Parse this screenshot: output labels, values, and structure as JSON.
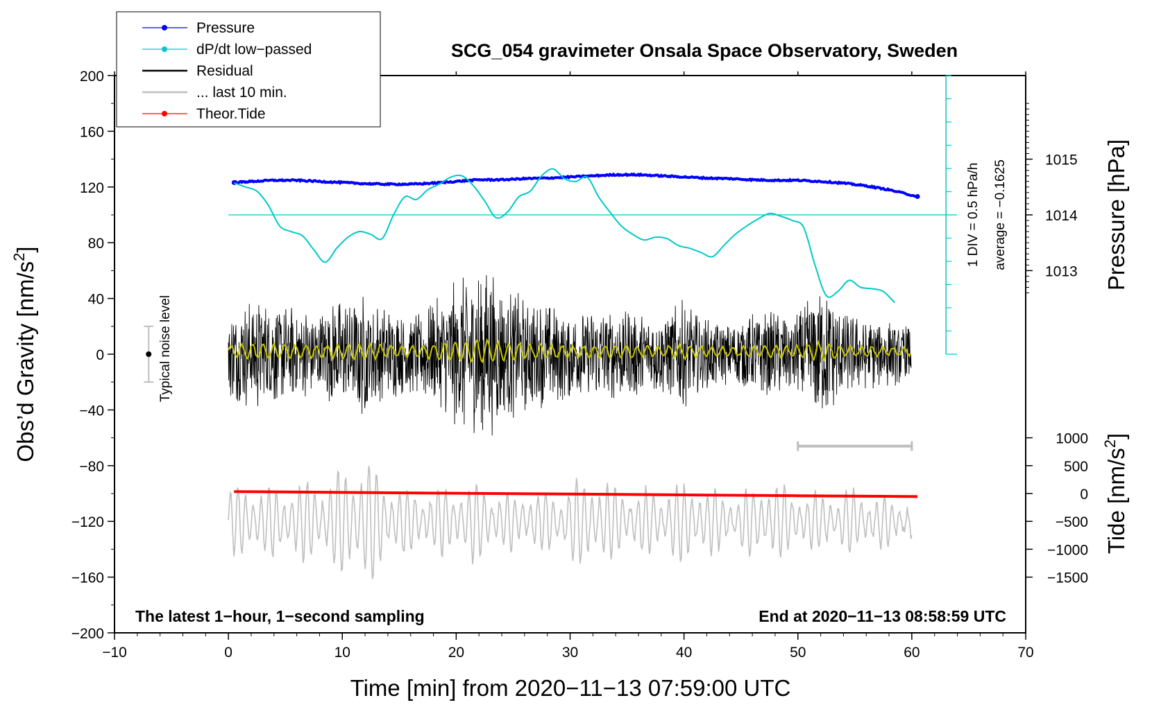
{
  "chart_data": {
    "type": "line",
    "title": "SCG_054 gravimeter Onsala Space Observatory, Sweden",
    "xlabel": "Time [min] from 2020−11−13 07:59:00 UTC",
    "ylabel_left_main": "Obs’d Gravity [nm/s",
    "ylabel_left_sup": "2",
    "ylabel_left_end": "]",
    "ylabel_right_pressure": "Pressure [hPa]",
    "ylabel_right_tide_main": "Tide [nm/s",
    "ylabel_right_tide_sup": "2",
    "ylabel_right_tide_end": "]",
    "xlim": [
      -10,
      70
    ],
    "ylim": [
      -200,
      200
    ],
    "x_ticks": [
      {
        "v": -10,
        "label": "−10"
      },
      {
        "v": 0,
        "label": "0"
      },
      {
        "v": 10,
        "label": "10"
      },
      {
        "v": 20,
        "label": "20"
      },
      {
        "v": 30,
        "label": "30"
      },
      {
        "v": 40,
        "label": "40"
      },
      {
        "v": 50,
        "label": "50"
      },
      {
        "v": 60,
        "label": "60"
      },
      {
        "v": 70,
        "label": "70"
      }
    ],
    "y_ticks": [
      {
        "v": 200,
        "label": "200"
      },
      {
        "v": 160,
        "label": "160"
      },
      {
        "v": 120,
        "label": "120"
      },
      {
        "v": 80,
        "label": "80"
      },
      {
        "v": 40,
        "label": "40"
      },
      {
        "v": 0,
        "label": "0"
      },
      {
        "v": -40,
        "label": "−40"
      },
      {
        "v": -80,
        "label": "−80"
      },
      {
        "v": -120,
        "label": "−120"
      },
      {
        "v": -160,
        "label": "−160"
      },
      {
        "v": -200,
        "label": "−200"
      }
    ],
    "pressure_axis": {
      "ticks": [
        {
          "v": 1015,
          "label": "1015"
        },
        {
          "v": 1014,
          "label": "1014"
        },
        {
          "v": 1013,
          "label": "1013"
        }
      ],
      "gravity_at_1014": 100,
      "nm_s2_per_hPa": 40
    },
    "tide_axis": {
      "ticks": [
        {
          "v": 1000,
          "label": "1000"
        },
        {
          "v": 500,
          "label": "500"
        },
        {
          "v": 0,
          "label": "0"
        },
        {
          "v": -500,
          "label": "−500"
        },
        {
          "v": -1000,
          "label": "−1000"
        },
        {
          "v": -1500,
          "label": "−1500"
        }
      ],
      "gravity_at_0": -100,
      "tide_per_gravity_unit": 25
    },
    "dpdt_axis": {
      "label1": "1 DIV = 0.5 hPa/h",
      "label2": "average = −0.1625",
      "x": 63,
      "y_range": [
        0,
        200
      ],
      "div_count": 12,
      "baseline_y": 100
    },
    "legend": {
      "position": "top-left",
      "entries": [
        {
          "label": "Pressure",
          "color": "#0000ff",
          "marker": true
        },
        {
          "label": "dP/dt low−passed",
          "color": "#00c8c8",
          "marker": true
        },
        {
          "label": "Residual",
          "color": "#000000",
          "marker": false
        },
        {
          "label": "... last 10 min.",
          "color": "#bebebe",
          "marker": false
        },
        {
          "label": "Theor.Tide",
          "color": "#ff0000",
          "marker": true
        }
      ]
    },
    "annotations": {
      "bottom_left": "The latest 1−hour, 1−second sampling",
      "bottom_right": "End at 2020−11−13 08:58:59 UTC",
      "noise_label": "Typical noise level",
      "noise_bar": {
        "x": -7,
        "center": 0,
        "half": 20
      },
      "last10_bar": {
        "x0": 50,
        "x1": 60,
        "y": -66
      }
    },
    "series": [
      {
        "name": "Pressure",
        "color": "#0000ff",
        "units": "hPa",
        "x": [
          0.5,
          2,
          4,
          6,
          8,
          10,
          12,
          14,
          16,
          18,
          20,
          22,
          24,
          26,
          28,
          30,
          32,
          34,
          36,
          38,
          40,
          42,
          44,
          46,
          48,
          50,
          52,
          54,
          56,
          58,
          60.5
        ],
        "y": [
          1014.58,
          1014.6,
          1014.62,
          1014.62,
          1014.6,
          1014.58,
          1014.56,
          1014.55,
          1014.55,
          1014.57,
          1014.6,
          1014.63,
          1014.63,
          1014.65,
          1014.66,
          1014.68,
          1014.7,
          1014.72,
          1014.72,
          1014.7,
          1014.68,
          1014.66,
          1014.65,
          1014.63,
          1014.62,
          1014.62,
          1014.6,
          1014.57,
          1014.52,
          1014.45,
          1014.33
        ]
      },
      {
        "name": "dP/dt low-passed",
        "color": "#00c8c8",
        "units": "nm/s2 plot scale",
        "x": [
          0.5,
          1.5,
          2.5,
          3.5,
          4.5,
          5.5,
          6.5,
          7.5,
          8.5,
          9.5,
          10.5,
          11.5,
          12.5,
          13.5,
          14.5,
          15.5,
          16.5,
          17.5,
          18.5,
          19.5,
          20.5,
          21.5,
          22.5,
          23.5,
          24.5,
          25.5,
          26.5,
          27.5,
          28.5,
          29.5,
          30.5,
          31.5,
          32.5,
          33.5,
          34.5,
          35.5,
          36.5,
          37.5,
          38.5,
          39.5,
          40.5,
          41.5,
          42.5,
          43.5,
          44.5,
          45.5,
          46.5,
          47.5,
          48.5,
          49.5,
          50.5,
          51.5,
          52.5,
          53.5,
          54.5,
          55.5,
          56.5,
          57.5,
          58.5
        ],
        "y": [
          123,
          120,
          117,
          107,
          92,
          88,
          85,
          75,
          66,
          76,
          84,
          88,
          86,
          83,
          100,
          113,
          111,
          118,
          122,
          127,
          128,
          121,
          110,
          98,
          102,
          113,
          117,
          128,
          133,
          126,
          124,
          127,
          113,
          102,
          92,
          86,
          82,
          84,
          83,
          78,
          76,
          73,
          70,
          78,
          86,
          92,
          97,
          101,
          99,
          96,
          91,
          64,
          42,
          45,
          53,
          48,
          47,
          45,
          37
        ]
      },
      {
        "name": "Residual",
        "color": "#000000",
        "units": "nm/s2",
        "x_range": [
          0,
          60
        ],
        "envelope": [
          {
            "x": 0,
            "amp": 30
          },
          {
            "x": 2,
            "amp": 42
          },
          {
            "x": 4,
            "amp": 38
          },
          {
            "x": 6,
            "amp": 36
          },
          {
            "x": 8,
            "amp": 32
          },
          {
            "x": 10,
            "amp": 42
          },
          {
            "x": 12,
            "amp": 46
          },
          {
            "x": 14,
            "amp": 34
          },
          {
            "x": 16,
            "amp": 30
          },
          {
            "x": 18,
            "amp": 38
          },
          {
            "x": 20,
            "amp": 54
          },
          {
            "x": 22,
            "amp": 68
          },
          {
            "x": 24,
            "amp": 52
          },
          {
            "x": 26,
            "amp": 42
          },
          {
            "x": 28,
            "amp": 38
          },
          {
            "x": 30,
            "amp": 32
          },
          {
            "x": 32,
            "amp": 34
          },
          {
            "x": 34,
            "amp": 34
          },
          {
            "x": 36,
            "amp": 32
          },
          {
            "x": 38,
            "amp": 30
          },
          {
            "x": 40,
            "amp": 40
          },
          {
            "x": 42,
            "amp": 26
          },
          {
            "x": 44,
            "amp": 22
          },
          {
            "x": 46,
            "amp": 30
          },
          {
            "x": 48,
            "amp": 32
          },
          {
            "x": 50,
            "amp": 30
          },
          {
            "x": 52,
            "amp": 52
          },
          {
            "x": 54,
            "amp": 30
          },
          {
            "x": 56,
            "amp": 26
          },
          {
            "x": 58,
            "amp": 24
          },
          {
            "x": 60,
            "amp": 20
          }
        ],
        "yellow_overlay_color": "#c8c800"
      },
      {
        "name": "... last 10 min.",
        "color": "#bebebe",
        "units": "nm/s2 plot scale",
        "x_range": [
          0,
          60
        ],
        "center": -120,
        "envelope": [
          {
            "x": 0,
            "amp": 25
          },
          {
            "x": 4,
            "amp": 25
          },
          {
            "x": 8,
            "amp": 32
          },
          {
            "x": 10,
            "amp": 38
          },
          {
            "x": 12,
            "amp": 50
          },
          {
            "x": 14,
            "amp": 30
          },
          {
            "x": 16,
            "amp": 22
          },
          {
            "x": 18,
            "amp": 24
          },
          {
            "x": 20,
            "amp": 28
          },
          {
            "x": 22,
            "amp": 30
          },
          {
            "x": 24,
            "amp": 20
          },
          {
            "x": 28,
            "amp": 22
          },
          {
            "x": 32,
            "amp": 34
          },
          {
            "x": 36,
            "amp": 22
          },
          {
            "x": 40,
            "amp": 30
          },
          {
            "x": 44,
            "amp": 20
          },
          {
            "x": 48,
            "amp": 30
          },
          {
            "x": 50,
            "amp": 20
          },
          {
            "x": 54,
            "amp": 24
          },
          {
            "x": 58,
            "amp": 18
          },
          {
            "x": 60,
            "amp": 14
          }
        ]
      },
      {
        "name": "Theor.Tide",
        "color": "#ff0000",
        "units": "nm/s2 (tide axis)",
        "x": [
          0.5,
          10,
          20,
          30,
          40,
          50,
          60.5
        ],
        "y": [
          35,
          20,
          5,
          -10,
          -25,
          -40,
          -55
        ]
      }
    ]
  }
}
